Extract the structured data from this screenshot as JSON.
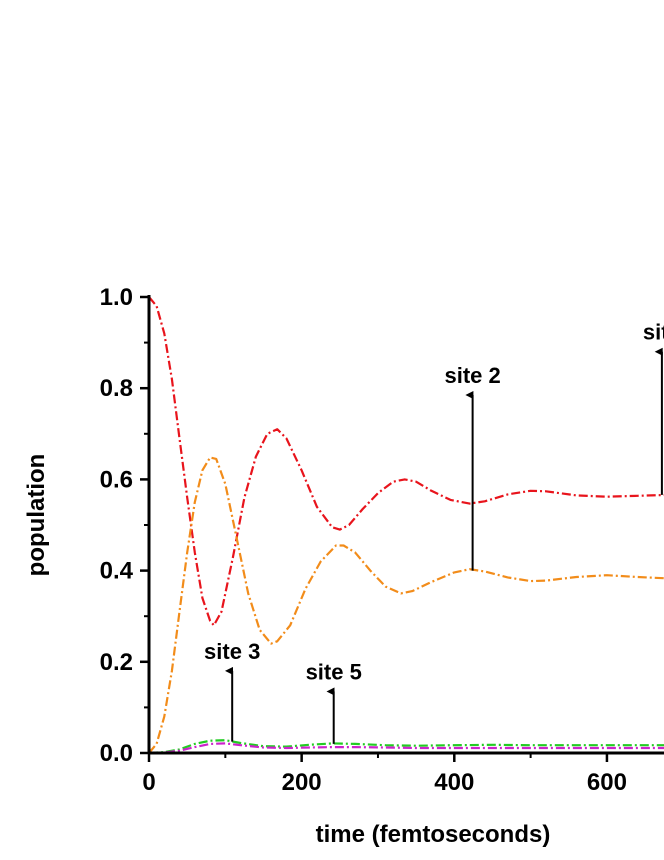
{
  "chart_data": {
    "type": "line",
    "title": "",
    "xlabel": "time (femtoseconds)",
    "ylabel": "population",
    "xlim": [
      0,
      680
    ],
    "ylim": [
      0,
      1.0
    ],
    "x_ticks": [
      "0",
      "200",
      "400",
      "600"
    ],
    "y_ticks": [
      "0.0",
      "0.2",
      "0.4",
      "0.6",
      "0.8",
      "1.0"
    ],
    "grid": false,
    "legend": "none",
    "series": [
      {
        "color": "#e8141c",
        "style": "dash-dot",
        "points": [
          [
            0,
            1.0
          ],
          [
            10,
            0.98
          ],
          [
            20,
            0.92
          ],
          [
            30,
            0.82
          ],
          [
            40,
            0.69
          ],
          [
            50,
            0.56
          ],
          [
            60,
            0.44
          ],
          [
            70,
            0.34
          ],
          [
            80,
            0.29
          ],
          [
            85,
            0.28
          ],
          [
            95,
            0.31
          ],
          [
            110,
            0.43
          ],
          [
            125,
            0.56
          ],
          [
            140,
            0.65
          ],
          [
            155,
            0.7
          ],
          [
            168,
            0.71
          ],
          [
            180,
            0.69
          ],
          [
            200,
            0.62
          ],
          [
            220,
            0.54
          ],
          [
            240,
            0.495
          ],
          [
            250,
            0.49
          ],
          [
            262,
            0.5
          ],
          [
            280,
            0.535
          ],
          [
            300,
            0.57
          ],
          [
            320,
            0.595
          ],
          [
            335,
            0.6
          ],
          [
            350,
            0.595
          ],
          [
            370,
            0.575
          ],
          [
            395,
            0.555
          ],
          [
            420,
            0.547
          ],
          [
            440,
            0.552
          ],
          [
            470,
            0.567
          ],
          [
            500,
            0.575
          ],
          [
            520,
            0.574
          ],
          [
            560,
            0.565
          ],
          [
            600,
            0.562
          ],
          [
            640,
            0.564
          ],
          [
            680,
            0.566
          ]
        ]
      },
      {
        "color": "#f28c1a",
        "style": "dash-dot",
        "points": [
          [
            0,
            0.0
          ],
          [
            10,
            0.02
          ],
          [
            20,
            0.08
          ],
          [
            30,
            0.18
          ],
          [
            40,
            0.31
          ],
          [
            50,
            0.44
          ],
          [
            60,
            0.55
          ],
          [
            70,
            0.62
          ],
          [
            80,
            0.648
          ],
          [
            88,
            0.645
          ],
          [
            100,
            0.59
          ],
          [
            115,
            0.47
          ],
          [
            130,
            0.35
          ],
          [
            145,
            0.27
          ],
          [
            160,
            0.24
          ],
          [
            168,
            0.245
          ],
          [
            185,
            0.28
          ],
          [
            205,
            0.36
          ],
          [
            225,
            0.42
          ],
          [
            245,
            0.455
          ],
          [
            255,
            0.455
          ],
          [
            270,
            0.44
          ],
          [
            290,
            0.4
          ],
          [
            310,
            0.365
          ],
          [
            330,
            0.35
          ],
          [
            345,
            0.355
          ],
          [
            370,
            0.375
          ],
          [
            400,
            0.396
          ],
          [
            420,
            0.403
          ],
          [
            440,
            0.398
          ],
          [
            470,
            0.385
          ],
          [
            500,
            0.377
          ],
          [
            520,
            0.378
          ],
          [
            560,
            0.386
          ],
          [
            600,
            0.39
          ],
          [
            640,
            0.386
          ],
          [
            680,
            0.383
          ]
        ]
      },
      {
        "color": "#22cc22",
        "style": "dash-dot",
        "points": [
          [
            0,
            0.0
          ],
          [
            20,
            0.002
          ],
          [
            40,
            0.008
          ],
          [
            60,
            0.02
          ],
          [
            80,
            0.027
          ],
          [
            100,
            0.028
          ],
          [
            120,
            0.022
          ],
          [
            150,
            0.015
          ],
          [
            180,
            0.014
          ],
          [
            210,
            0.018
          ],
          [
            240,
            0.021
          ],
          [
            270,
            0.02
          ],
          [
            310,
            0.017
          ],
          [
            350,
            0.016
          ],
          [
            400,
            0.017
          ],
          [
            450,
            0.018
          ],
          [
            500,
            0.017
          ],
          [
            550,
            0.017
          ],
          [
            600,
            0.017
          ],
          [
            680,
            0.017
          ]
        ]
      },
      {
        "color": "#cc22cc",
        "style": "dash-dot",
        "points": [
          [
            0,
            0.0
          ],
          [
            20,
            0.001
          ],
          [
            40,
            0.005
          ],
          [
            60,
            0.013
          ],
          [
            80,
            0.02
          ],
          [
            100,
            0.021
          ],
          [
            120,
            0.017
          ],
          [
            150,
            0.012
          ],
          [
            180,
            0.011
          ],
          [
            210,
            0.012
          ],
          [
            240,
            0.013
          ],
          [
            270,
            0.013
          ],
          [
            310,
            0.012
          ],
          [
            350,
            0.011
          ],
          [
            400,
            0.011
          ],
          [
            450,
            0.011
          ],
          [
            500,
            0.011
          ],
          [
            550,
            0.011
          ],
          [
            600,
            0.011
          ],
          [
            680,
            0.011
          ]
        ]
      }
    ],
    "annotations": [
      {
        "text": "site 2",
        "x": 424,
        "y_from": 0.4,
        "y_to": 0.785
      },
      {
        "text": "site",
        "x": 672,
        "y_from": 0.566,
        "y_to": 0.88
      },
      {
        "text": "site 3",
        "x": 109,
        "y_from": 0.025,
        "y_to": 0.18
      },
      {
        "text": "site 5",
        "x": 242,
        "y_from": 0.02,
        "y_to": 0.135
      }
    ]
  }
}
